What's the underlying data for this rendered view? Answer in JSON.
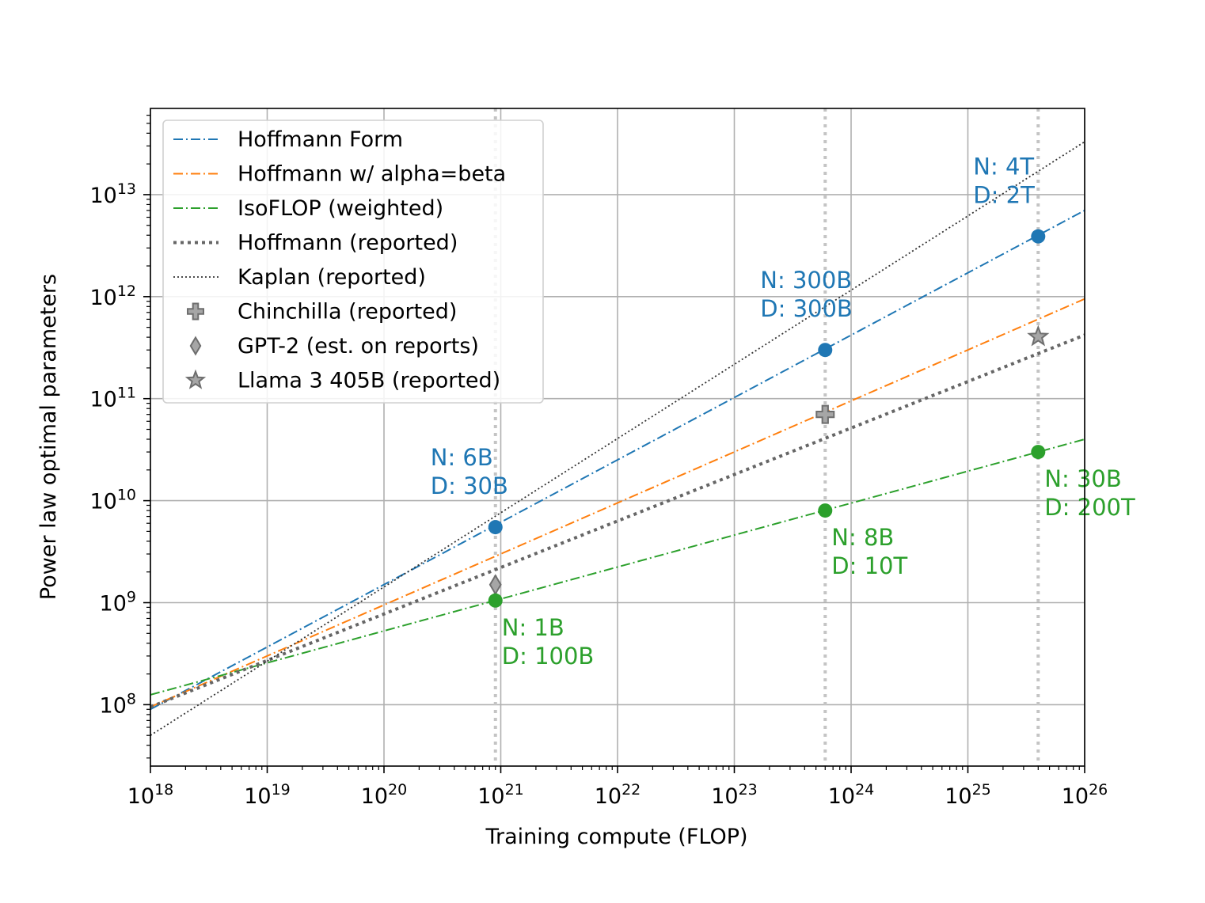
{
  "chart_data": {
    "type": "line",
    "xscale": "log",
    "yscale": "log",
    "xlim": [
      1e+18,
      1e+26
    ],
    "ylim": [
      25000000.0,
      70000000000000.0
    ],
    "xlabel": "Training compute (FLOP)",
    "ylabel": "Power law optimal parameters",
    "grid": true,
    "legend_position": "upper-left",
    "x_ticks": [
      {
        "base": "10",
        "exp": "18"
      },
      {
        "base": "10",
        "exp": "19"
      },
      {
        "base": "10",
        "exp": "20"
      },
      {
        "base": "10",
        "exp": "21"
      },
      {
        "base": "10",
        "exp": "22"
      },
      {
        "base": "10",
        "exp": "23"
      },
      {
        "base": "10",
        "exp": "24"
      },
      {
        "base": "10",
        "exp": "25"
      },
      {
        "base": "10",
        "exp": "26"
      }
    ],
    "y_ticks": [
      {
        "base": "10",
        "exp": "8"
      },
      {
        "base": "10",
        "exp": "9"
      },
      {
        "base": "10",
        "exp": "10"
      },
      {
        "base": "10",
        "exp": "11"
      },
      {
        "base": "10",
        "exp": "12"
      },
      {
        "base": "10",
        "exp": "13"
      }
    ],
    "vlines": [
      9e+20,
      6e+23,
      4e+25
    ],
    "series": [
      {
        "name": "Hoffmann Form",
        "color": "#1f77b4",
        "style": "dashdot",
        "x": [
          1e+18,
          1e+26
        ],
        "y": [
          90000000.0,
          7000000000000.0
        ],
        "markers": [
          {
            "x": 9e+20,
            "y": 5500000000.0
          },
          {
            "x": 6e+23,
            "y": 300000000000.0
          },
          {
            "x": 4e+25,
            "y": 3900000000000.0
          }
        ]
      },
      {
        "name": "Hoffmann w/ alpha=beta",
        "color": "#ff7f0e",
        "style": "dashdot",
        "x": [
          1e+18,
          1e+26
        ],
        "y": [
          95000000.0,
          950000000000.0
        ]
      },
      {
        "name": "IsoFLOP (weighted)",
        "color": "#2ca02c",
        "style": "dashdot",
        "x": [
          1e+18,
          1e+26
        ],
        "y": [
          125000000.0,
          40000000000.0
        ],
        "markers": [
          {
            "x": 9e+20,
            "y": 1050000000.0
          },
          {
            "x": 6e+23,
            "y": 8000000000.0
          },
          {
            "x": 4e+25,
            "y": 30000000000.0
          }
        ]
      },
      {
        "name": "Hoffmann (reported)",
        "color": "#666666",
        "style": "dotted-thick",
        "x": [
          1e+18,
          1e+26
        ],
        "y": [
          95000000.0,
          420000000000.0
        ]
      },
      {
        "name": "Kaplan (reported)",
        "color": "#333333",
        "style": "dotted-thin",
        "x": [
          1e+18,
          1e+26
        ],
        "y": [
          50000000.0,
          33000000000000.0
        ]
      }
    ],
    "points": [
      {
        "name": "Chinchilla (reported)",
        "marker": "plus",
        "x": 6e+23,
        "y": 70000000000.0
      },
      {
        "name": "GPT-2 (est. on reports)",
        "marker": "diamond",
        "x": 9e+20,
        "y": 1500000000.0
      },
      {
        "name": "Llama 3 405B (reported)",
        "marker": "star",
        "x": 4e+25,
        "y": 405000000000.0
      }
    ],
    "legend": [
      {
        "label": "Hoffmann Form",
        "kind": "line",
        "color": "#1f77b4",
        "style": "dashdot"
      },
      {
        "label": "Hoffmann w/ alpha=beta",
        "kind": "line",
        "color": "#ff7f0e",
        "style": "dashdot"
      },
      {
        "label": "IsoFLOP (weighted)",
        "kind": "line",
        "color": "#2ca02c",
        "style": "dashdot"
      },
      {
        "label": "Hoffmann (reported)",
        "kind": "line",
        "color": "#666666",
        "style": "dotted-thick"
      },
      {
        "label": "Kaplan (reported)",
        "kind": "line",
        "color": "#333333",
        "style": "dotted-thin"
      },
      {
        "label": "Chinchilla (reported)",
        "kind": "marker",
        "marker": "plus"
      },
      {
        "label": "GPT-2 (est. on reports)",
        "kind": "marker",
        "marker": "diamond"
      },
      {
        "label": "Llama 3 405B (reported)",
        "kind": "marker",
        "marker": "star"
      }
    ],
    "annotations": [
      {
        "color": "#1f77b4",
        "x": 9e+20,
        "y": 5500000000.0,
        "placement": "above-left",
        "lines": [
          "N: 6B",
          "D: 30B"
        ]
      },
      {
        "color": "#1f77b4",
        "x": 6e+23,
        "y": 300000000000.0,
        "placement": "above-left",
        "lines": [
          "N: 300B",
          "D: 300B"
        ]
      },
      {
        "color": "#1f77b4",
        "x": 4e+25,
        "y": 3900000000000.0,
        "placement": "above-left",
        "lines": [
          "N: 4T",
          "D: 2T"
        ]
      },
      {
        "color": "#2ca02c",
        "x": 9e+20,
        "y": 1050000000.0,
        "placement": "below-right",
        "lines": [
          "N: 1B",
          "D: 100B"
        ]
      },
      {
        "color": "#2ca02c",
        "x": 6e+23,
        "y": 8000000000.0,
        "placement": "below-right",
        "lines": [
          "N: 8B",
          "D: 10T"
        ]
      },
      {
        "color": "#2ca02c",
        "x": 4e+25,
        "y": 30000000000.0,
        "placement": "below-right",
        "lines": [
          "N: 30B",
          "D: 200T"
        ]
      }
    ]
  }
}
